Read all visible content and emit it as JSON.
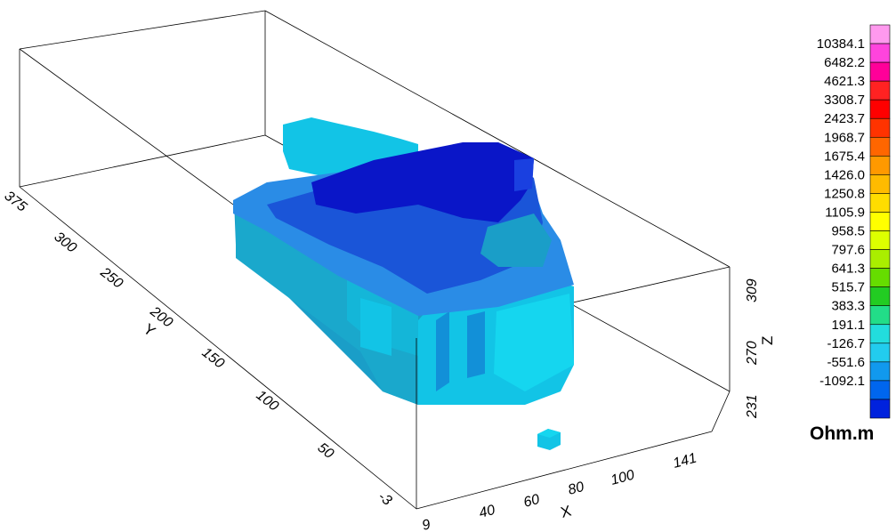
{
  "chart_data": {
    "type": "3d-voxel-block-model",
    "axes": {
      "x": {
        "label": "X",
        "ticks": [
          "9",
          "40",
          "60",
          "80",
          "100",
          "141"
        ]
      },
      "y": {
        "label": "Y",
        "ticks": [
          "-3",
          "50",
          "100",
          "150",
          "200",
          "250",
          "300",
          "375"
        ]
      },
      "z": {
        "label": "Z",
        "ticks": [
          "231",
          "270",
          "309"
        ]
      }
    },
    "colorbar": {
      "unit": "Ohm.m",
      "levels": [
        "10384.1",
        "6482.2",
        "4621.3",
        "3308.7",
        "2423.7",
        "1968.7",
        "1675.4",
        "1426.0",
        "1250.8",
        "1105.9",
        "958.5",
        "797.6",
        "641.3",
        "515.7",
        "383.3",
        "191.1",
        "-126.7",
        "-551.6",
        "-1092.1"
      ],
      "colors": [
        "#ff99ee",
        "#ff44dd",
        "#ff0099",
        "#ff2222",
        "#ff0000",
        "#ff3300",
        "#ff6600",
        "#ff9900",
        "#ffbb00",
        "#ffdd00",
        "#ffff00",
        "#ddff00",
        "#aaee00",
        "#66dd00",
        "#22cc22",
        "#22dd88",
        "#22dddd",
        "#22ccee",
        "#1199ee",
        "#0066ee",
        "#0022dd"
      ]
    },
    "rendering_colors": {
      "top_dark": "#0a16c8",
      "top_mid": "#1a55d8",
      "top_light": "#2a8ce6",
      "side_cyan": "#12c4e6",
      "side_teal": "#1a9ec8",
      "side_bright": "#15d6ef"
    }
  }
}
